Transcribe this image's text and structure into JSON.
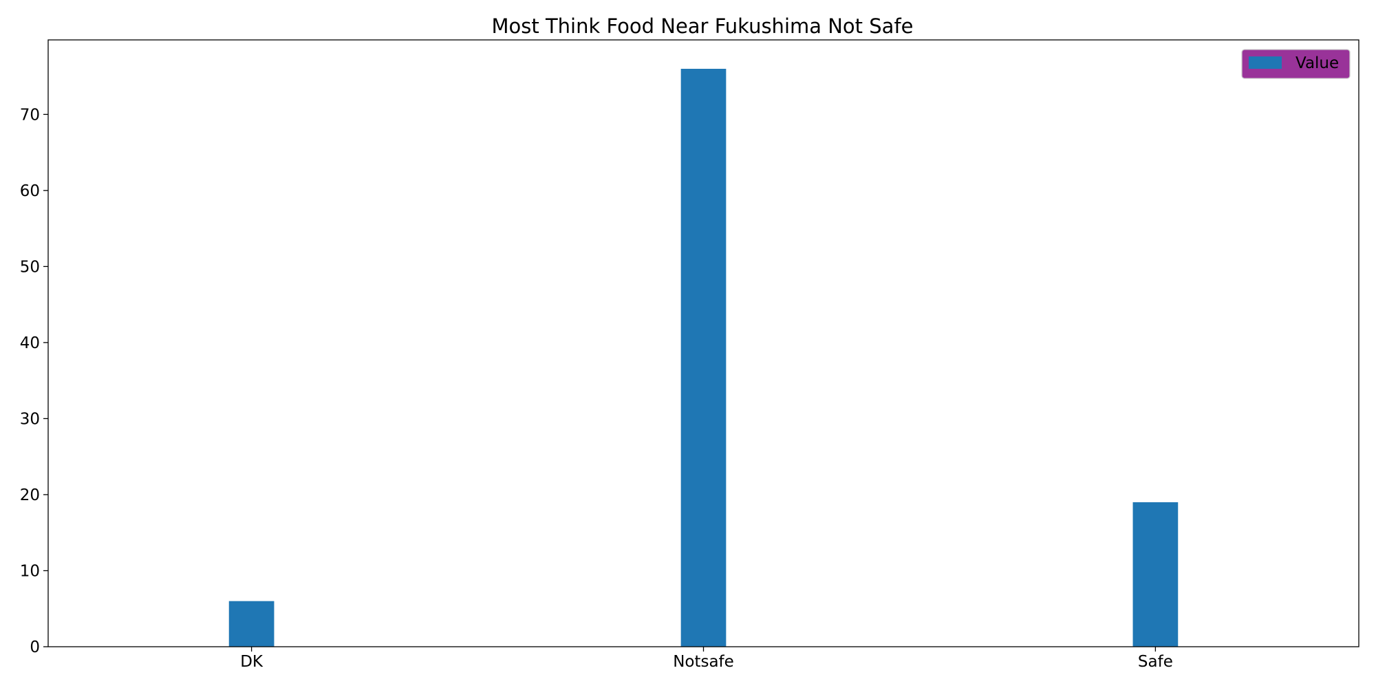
{
  "chart_data": {
    "type": "bar",
    "title": "Most Think Food Near Fukushima Not Safe",
    "categories": [
      "DK",
      "Notsafe",
      "Safe"
    ],
    "series": [
      {
        "name": "Value",
        "values": [
          6,
          76,
          19
        ]
      }
    ],
    "xlabel": "",
    "ylabel": "",
    "ylim": [
      0,
      79.8
    ],
    "yticks": [
      0,
      10,
      20,
      30,
      40,
      50,
      60,
      70
    ],
    "grid": false,
    "legend": {
      "position": "top-right",
      "entries": [
        "Value"
      ]
    }
  },
  "colors": {
    "bar": "#1f77b4",
    "legend_background": "#993399",
    "legend_border": "#cccccc",
    "axis": "#000000",
    "background": "#ffffff"
  }
}
